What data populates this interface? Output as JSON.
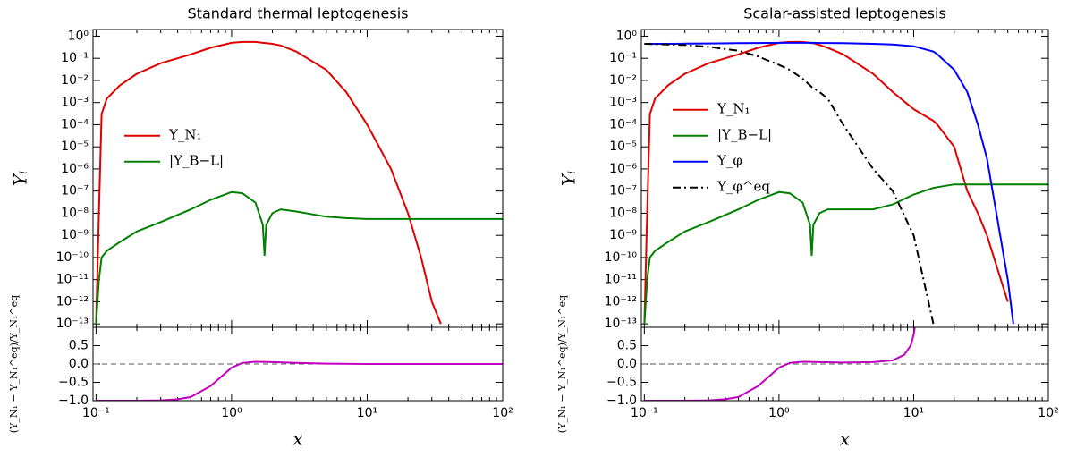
{
  "chart_data": [
    {
      "type": "line",
      "title": "Standard thermal leptogenesis",
      "ylabel": "Yᵢ",
      "yscale": "log",
      "xscale": "log",
      "xlim": [
        0.095,
        100
      ],
      "xticks": [
        0.1,
        1,
        10,
        100
      ],
      "ylim": [
        7e-14,
        2
      ],
      "yticks": [
        {
          "value": 1,
          "label": "10⁰"
        },
        {
          "value": 0.1,
          "label": "10⁻¹"
        },
        {
          "value": 0.01,
          "label": "10⁻²"
        },
        {
          "value": 0.001,
          "label": "10⁻³"
        },
        {
          "value": 0.0001,
          "label": "10⁻⁴"
        },
        {
          "value": 1e-05,
          "label": "10⁻⁵"
        },
        {
          "value": 1e-06,
          "label": "10⁻⁶"
        },
        {
          "value": 1e-07,
          "label": "10⁻⁷"
        },
        {
          "value": 1e-08,
          "label": "10⁻⁸"
        },
        {
          "value": 1e-09,
          "label": "10⁻⁹"
        },
        {
          "value": 1e-10,
          "label": "10⁻¹⁰"
        },
        {
          "value": 1e-11,
          "label": "10⁻¹¹"
        },
        {
          "value": 1e-12,
          "label": "10⁻¹²"
        },
        {
          "value": 1e-13,
          "label": "10⁻¹³"
        }
      ],
      "legend": "center left",
      "x": [
        0.1,
        0.105,
        0.11,
        0.12,
        0.15,
        0.2,
        0.3,
        0.5,
        0.7,
        1,
        1.2,
        1.5,
        1.7,
        1.75,
        1.8,
        2,
        2.3,
        3,
        5,
        7,
        10,
        15,
        20,
        25,
        30,
        35,
        50,
        100
      ],
      "series": [
        {
          "name": "Y_N₁",
          "color": "#e00000",
          "dash": "solid",
          "values": [
            1e-13,
            1e-08,
            0.0003,
            0.0015,
            0.006,
            0.02,
            0.06,
            0.15,
            0.3,
            0.5,
            0.55,
            0.55,
            0.5,
            0.49,
            0.48,
            0.45,
            0.38,
            0.2,
            0.03,
            0.003,
            0.0001,
            1e-06,
            1e-08,
            1e-10,
            1e-12,
            1e-13,
            null,
            null
          ]
        },
        {
          "name": "|Y_B−L|",
          "color": "#008000",
          "dash": "solid",
          "values": [
            1e-13,
            1e-11,
            1e-10,
            2e-10,
            5e-10,
            1.5e-09,
            4e-09,
            1.5e-08,
            4e-08,
            9e-08,
            8e-08,
            3e-08,
            3e-09,
            1.2e-10,
            3e-09,
            1e-08,
            1.5e-08,
            1.2e-08,
            7e-09,
            6e-09,
            5.5e-09,
            5.5e-09,
            5.5e-09,
            5.5e-09,
            5.5e-09,
            5.5e-09,
            5.5e-09,
            5.5e-09
          ]
        }
      ]
    },
    {
      "type": "line",
      "ylabel": "(Y_N₁ − Y_N₁^eq)/Y_N₁^eq",
      "xlabel": "x",
      "xscale": "log",
      "xlim": [
        0.095,
        100
      ],
      "xticks": [
        {
          "value": 0.1,
          "label": "10⁻¹"
        },
        {
          "value": 1,
          "label": "10⁰"
        },
        {
          "value": 10,
          "label": "10¹"
        },
        {
          "value": 100,
          "label": "10²"
        }
      ],
      "ylim": [
        -1,
        1
      ],
      "yticks": [
        {
          "value": -1,
          "label": "−1.0"
        },
        {
          "value": -0.5,
          "label": "−0.5"
        },
        {
          "value": 0,
          "label": "0.0"
        },
        {
          "value": 0.5,
          "label": "0.5"
        }
      ],
      "reference_line": {
        "y": 0,
        "color": "#555555"
      },
      "x": [
        0.1,
        0.2,
        0.3,
        0.4,
        0.5,
        0.7,
        1,
        1.2,
        1.5,
        2,
        3,
        5,
        10,
        100
      ],
      "series": [
        {
          "color": "#c000c0",
          "dash": "solid",
          "values": [
            -1,
            -1,
            -0.99,
            -0.96,
            -0.9,
            -0.6,
            -0.1,
            0.03,
            0.06,
            0.05,
            0.03,
            0.01,
            0,
            0
          ]
        }
      ]
    },
    {
      "type": "line",
      "title": "Scalar-assisted leptogenesis",
      "ylabel": "Yᵢ",
      "yscale": "log",
      "xscale": "log",
      "xlim": [
        0.095,
        100
      ],
      "xticks": [
        0.1,
        1,
        10,
        100
      ],
      "ylim": [
        7e-14,
        2
      ],
      "yticks": [
        {
          "value": 1,
          "label": "10⁰"
        },
        {
          "value": 0.1,
          "label": "10⁻¹"
        },
        {
          "value": 0.01,
          "label": "10⁻²"
        },
        {
          "value": 0.001,
          "label": "10⁻³"
        },
        {
          "value": 0.0001,
          "label": "10⁻⁴"
        },
        {
          "value": 1e-05,
          "label": "10⁻⁵"
        },
        {
          "value": 1e-06,
          "label": "10⁻⁶"
        },
        {
          "value": 1e-07,
          "label": "10⁻⁷"
        },
        {
          "value": 1e-08,
          "label": "10⁻⁸"
        },
        {
          "value": 1e-09,
          "label": "10⁻⁹"
        },
        {
          "value": 1e-10,
          "label": "10⁻¹⁰"
        },
        {
          "value": 1e-11,
          "label": "10⁻¹¹"
        },
        {
          "value": 1e-12,
          "label": "10⁻¹²"
        },
        {
          "value": 1e-13,
          "label": "10⁻¹³"
        }
      ],
      "legend": "center left",
      "x": [
        0.1,
        0.105,
        0.11,
        0.12,
        0.15,
        0.2,
        0.3,
        0.5,
        0.7,
        1,
        1.2,
        1.5,
        1.7,
        1.75,
        1.8,
        2,
        2.3,
        3,
        5,
        7,
        10,
        14,
        15,
        20,
        25,
        30,
        35,
        50,
        55,
        100
      ],
      "series": [
        {
          "name": "Y_N₁",
          "color": "#e00000",
          "dash": "solid",
          "values": [
            1e-13,
            1e-08,
            0.0003,
            0.0015,
            0.006,
            0.02,
            0.06,
            0.15,
            0.3,
            0.5,
            0.55,
            0.55,
            0.5,
            0.49,
            0.48,
            0.4,
            0.3,
            0.15,
            0.02,
            0.003,
            0.0005,
            0.00015,
            0.0001,
            1e-05,
            1e-07,
            1e-08,
            1e-09,
            1e-12,
            null,
            null
          ]
        },
        {
          "name": "|Y_B−L|",
          "color": "#008000",
          "dash": "solid",
          "values": [
            1e-13,
            1e-11,
            1e-10,
            2e-10,
            5e-10,
            1.5e-09,
            4e-09,
            1.5e-08,
            4e-08,
            9e-08,
            8e-08,
            3e-08,
            3e-09,
            1.2e-10,
            3e-09,
            1e-08,
            1.5e-08,
            1.5e-08,
            1.5e-08,
            2.5e-08,
            7e-08,
            1.4e-07,
            1.5e-07,
            2e-07,
            2e-07,
            2e-07,
            2e-07,
            2e-07,
            2e-07,
            2e-07
          ]
        },
        {
          "name": "Y_φ",
          "color": "#0000ff",
          "dash": "solid",
          "values": [
            0.45,
            0.45,
            0.45,
            0.45,
            0.45,
            0.46,
            0.47,
            0.48,
            0.49,
            0.5,
            0.5,
            0.5,
            0.5,
            0.5,
            0.5,
            0.49,
            0.49,
            0.48,
            0.45,
            0.42,
            0.35,
            0.2,
            0.15,
            0.03,
            0.003,
            0.0001,
            3e-06,
            1e-11,
            1e-13,
            null
          ]
        },
        {
          "name": "Y_φ^eq",
          "color": "#000000",
          "dash": "dashdot",
          "values": [
            0.45,
            0.45,
            0.44,
            0.44,
            0.42,
            0.4,
            0.33,
            0.22,
            0.12,
            0.05,
            0.03,
            0.012,
            0.006,
            0.005,
            0.0045,
            0.003,
            0.0015,
            0.0001,
            1e-06,
            1e-07,
            1e-09,
            1e-13,
            null,
            null,
            null,
            null,
            null,
            null,
            null,
            null
          ]
        }
      ]
    },
    {
      "type": "line",
      "ylabel": "(Y_N₁ − Y_N₁^eq)/Y_N₁^eq",
      "xlabel": "x",
      "xscale": "log",
      "xlim": [
        0.095,
        100
      ],
      "xticks": [
        {
          "value": 0.1,
          "label": "10⁻¹"
        },
        {
          "value": 1,
          "label": "10⁰"
        },
        {
          "value": 10,
          "label": "10¹"
        },
        {
          "value": 100,
          "label": "10²"
        }
      ],
      "ylim": [
        -1,
        1
      ],
      "yticks": [
        {
          "value": -1,
          "label": "−1.0"
        },
        {
          "value": -0.5,
          "label": "−0.5"
        },
        {
          "value": 0,
          "label": "0.0"
        },
        {
          "value": 0.5,
          "label": "0.5"
        }
      ],
      "reference_line": {
        "y": 0,
        "color": "#555555"
      },
      "x": [
        0.1,
        0.2,
        0.3,
        0.4,
        0.5,
        0.7,
        1,
        1.2,
        1.5,
        2,
        3,
        5,
        7,
        8.5,
        9.5,
        10,
        10.2
      ],
      "series": [
        {
          "color": "#c000c0",
          "dash": "solid",
          "values": [
            -1,
            -1,
            -0.99,
            -0.96,
            -0.9,
            -0.6,
            -0.1,
            0.03,
            0.06,
            0.05,
            0.04,
            0.05,
            0.1,
            0.25,
            0.5,
            0.8,
            1
          ]
        }
      ]
    }
  ]
}
